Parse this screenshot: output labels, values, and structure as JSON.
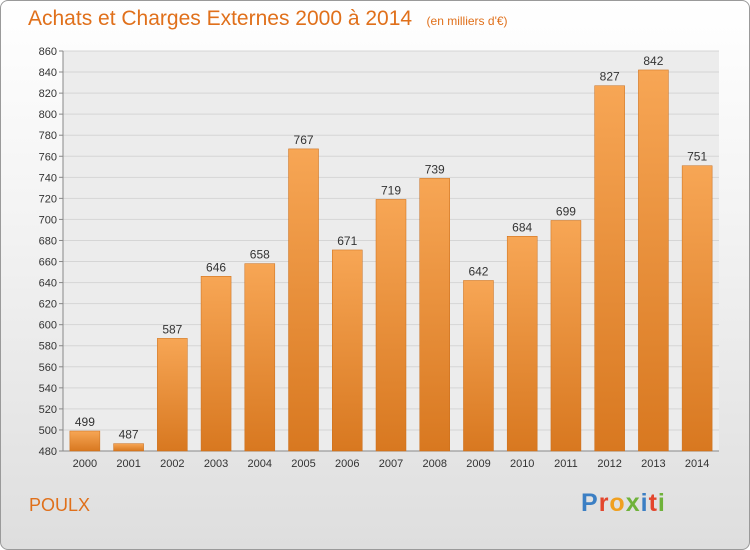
{
  "header": {
    "title": "Achats et Charges Externes 2000 à 2014",
    "subtitle": "(en milliers d'€)"
  },
  "footer": {
    "commune": "POULX",
    "brand": "Proxiti",
    "brand_colors": [
      "#3b7fc4",
      "#e3462d",
      "#f0a020",
      "#6fb23a",
      "#3b7fc4",
      "#e3462d",
      "#6fb23a"
    ]
  },
  "colors": {
    "accent": "#e0701b",
    "bar_light": "#f7a655",
    "bar_dark": "#d87820",
    "grid": "#d5d5d5",
    "plot_bg": "#ececec"
  },
  "chart_data": {
    "type": "bar",
    "title": "Achats et Charges Externes 2000 à 2014",
    "subtitle": "(en milliers d'€)",
    "categories": [
      "2000",
      "2001",
      "2002",
      "2003",
      "2004",
      "2005",
      "2006",
      "2007",
      "2008",
      "2009",
      "2010",
      "2011",
      "2012",
      "2013",
      "2014"
    ],
    "values": [
      499,
      487,
      587,
      646,
      658,
      767,
      671,
      719,
      739,
      642,
      684,
      699,
      827,
      842,
      751
    ],
    "ylim": [
      480,
      860
    ],
    "ytick_step": 20,
    "grid": true,
    "data_labels": true
  }
}
